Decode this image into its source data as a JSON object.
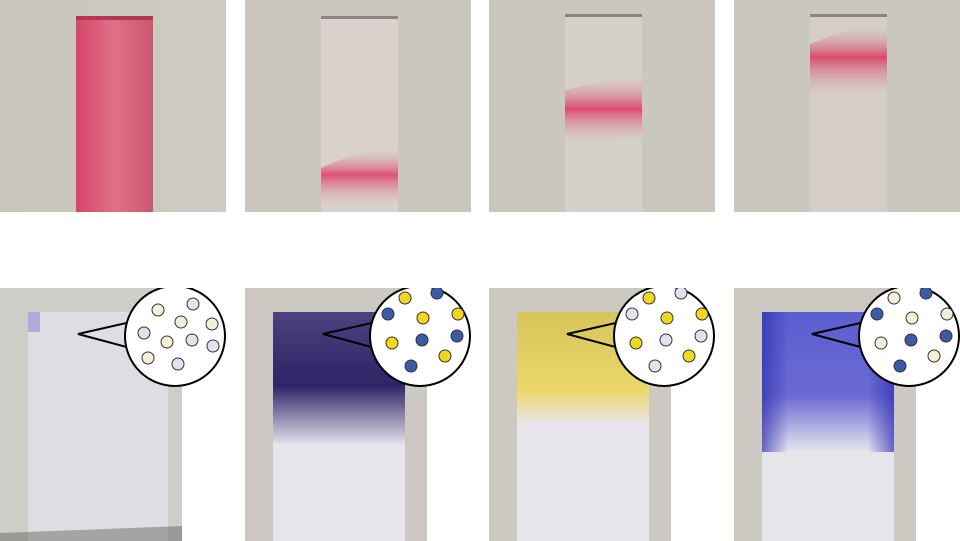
{
  "figure": {
    "top_row": {
      "description_photos": [
        {
          "name": "cuvette-full-pink"
        },
        {
          "name": "cuvette-band-low"
        },
        {
          "name": "cuvette-band-middle"
        },
        {
          "name": "cuvette-band-high"
        }
      ],
      "band_color": "#d9506e",
      "background_color": "#c9c6bc"
    },
    "bottom_row": {
      "panels": [
        {
          "name": "slab-clear",
          "tint": "#e3e2ea",
          "dots": [
            "#f4efd8",
            "#e3e0f0",
            "#f4efd8",
            "#e3e0f0",
            "#f4efd8",
            "#e3e0f0",
            "#f4efd8",
            "#e3e0f0",
            "#f4efd8",
            "#e3e0f0"
          ]
        },
        {
          "name": "slab-dark-blue",
          "tint": "#3c2f6a",
          "dots": [
            "#f0d820",
            "#3d5aa6",
            "#3d5aa6",
            "#f0d820",
            "#f0d820",
            "#f0d820",
            "#3d5aa6",
            "#f0d820",
            "#3d5aa6",
            "#3d5aa6"
          ]
        },
        {
          "name": "slab-yellow",
          "tint": "#e8d470",
          "dots": [
            "#f0d820",
            "#e3e0f0",
            "#e3e0f0",
            "#f0d820",
            "#f0d820",
            "#f0d820",
            "#e3e0f0",
            "#f0d820",
            "#e3e0f0",
            "#f0d820"
          ]
        },
        {
          "name": "slab-blue",
          "tint": "#4a4fc4",
          "dots": [
            "#f4efd8",
            "#3d5aa6",
            "#3d5aa6",
            "#f4efd8",
            "#f4efd8",
            "#3d5aa6",
            "#f4efd8",
            "#3d5aa6",
            "#3d5aa6",
            "#f4efd8"
          ]
        }
      ],
      "dot_stroke": "#333333",
      "callout_stroke": "#000000"
    }
  }
}
